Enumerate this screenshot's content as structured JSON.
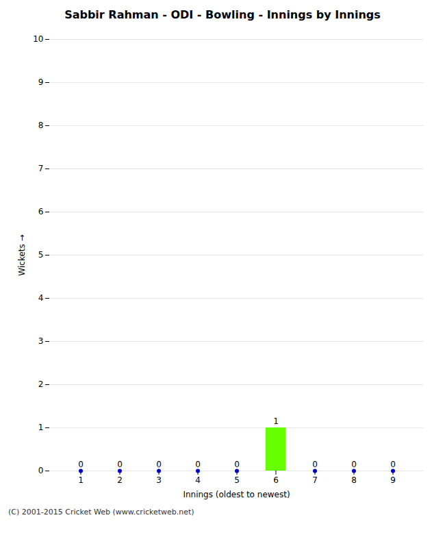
{
  "chart_data": {
    "type": "bar",
    "title": "Sabbir Rahman - ODI - Bowling - Innings by Innings",
    "xlabel": "Innings (oldest to newest)",
    "ylabel": "Wickets",
    "categories": [
      1,
      2,
      3,
      4,
      5,
      6,
      7,
      8,
      9
    ],
    "values": [
      0,
      0,
      0,
      0,
      0,
      1,
      0,
      0,
      0
    ],
    "colors": [
      "#0000cc",
      "#0000cc",
      "#0000cc",
      "#0000cc",
      "#0000cc",
      "#66ff00",
      "#0000cc",
      "#0000cc",
      "#0000cc"
    ],
    "ylim": [
      0,
      10
    ],
    "yticks": [
      0,
      1,
      2,
      3,
      4,
      5,
      6,
      7,
      8,
      9,
      10
    ],
    "grid": true,
    "data_labels": true,
    "annotations": [
      "(C) 2001-2015 Cricket Web (www.cricketweb.net)"
    ]
  }
}
